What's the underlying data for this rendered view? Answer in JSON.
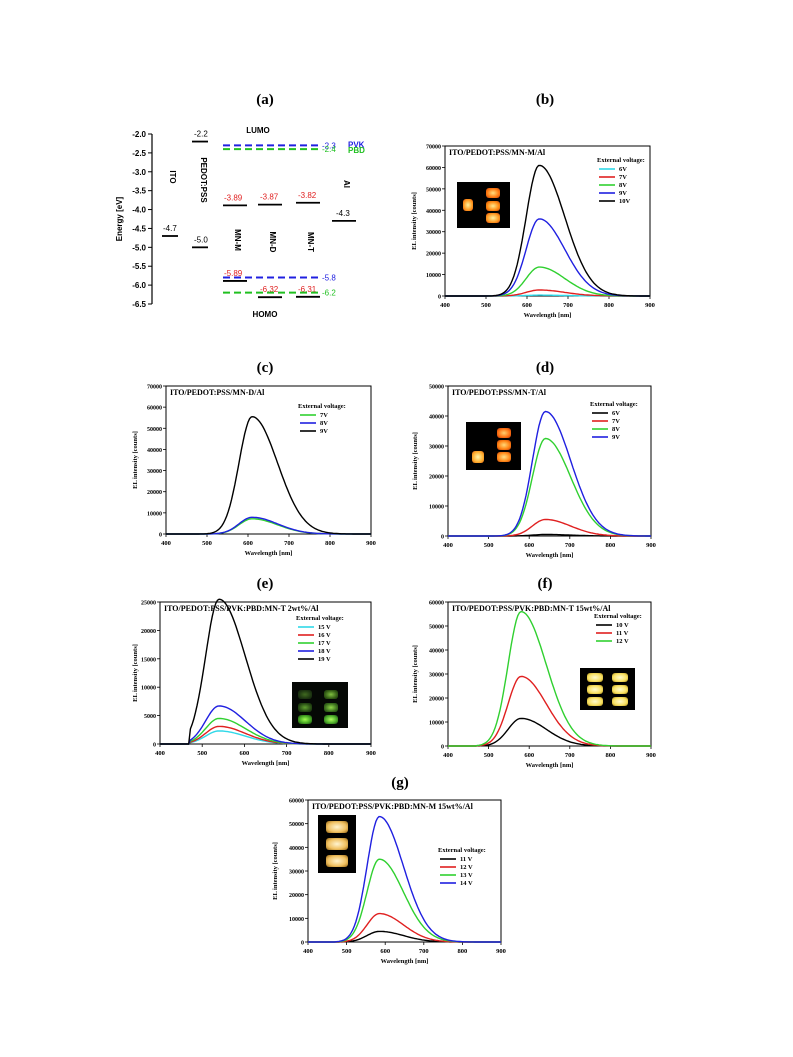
{
  "panels": {
    "a": {
      "label": "(a)"
    },
    "b": {
      "label": "(b)"
    },
    "c": {
      "label": "(c)"
    },
    "d": {
      "label": "(d)"
    },
    "e": {
      "label": "(e)"
    },
    "f": {
      "label": "(f)"
    },
    "g": {
      "label": "(g)"
    }
  },
  "chart_data": [
    {
      "id": "a",
      "type": "diagram",
      "ylabel": "Energy [eV]",
      "ylim": [
        -6.5,
        -2.0
      ],
      "yticks": [
        "-2.0",
        "-2.5",
        "-3.0",
        "-3.5",
        "-4.0",
        "-4.5",
        "-5.0",
        "-5.5",
        "-6.0",
        "-6.5"
      ],
      "top_label": "LUMO",
      "bottom_label": "HOMO",
      "materials": [
        {
          "name": "ITO",
          "levels": [
            {
              "value": -4.7,
              "label": "-4.7",
              "color": "#000000"
            }
          ]
        },
        {
          "name": "PEDOT:PSS",
          "levels": [
            {
              "value": -2.2,
              "label": "-2.2",
              "color": "#000000"
            },
            {
              "value": -5.0,
              "label": "-5.0",
              "color": "#000000"
            }
          ]
        },
        {
          "name": "MN-M",
          "levels": [
            {
              "value": -3.89,
              "label": "-3.89",
              "color": "#e02020"
            },
            {
              "value": -5.89,
              "label": "-5.89",
              "color": "#e02020"
            }
          ]
        },
        {
          "name": "MN-D",
          "levels": [
            {
              "value": -3.87,
              "label": "-3.87",
              "color": "#e02020"
            },
            {
              "value": -6.32,
              "label": "-6.32",
              "color": "#e02020"
            }
          ]
        },
        {
          "name": "MN-T",
          "levels": [
            {
              "value": -3.82,
              "label": "-3.82",
              "color": "#e02020"
            },
            {
              "value": -6.31,
              "label": "-6.31",
              "color": "#e02020"
            }
          ]
        },
        {
          "name": "Al",
          "levels": [
            {
              "value": -4.3,
              "label": "-4.3",
              "color": "#000000"
            }
          ]
        }
      ],
      "dashed_levels": [
        {
          "name": "PVK",
          "lumo": -2.3,
          "lumo_label": "-2.3",
          "homo": -5.8,
          "homo_label": "-5.8",
          "color": "#2020e0"
        },
        {
          "name": "PBD",
          "lumo": -2.4,
          "lumo_label": "-2.4",
          "homo": -6.2,
          "homo_label": "-6.2",
          "color": "#20c020"
        }
      ]
    },
    {
      "id": "b",
      "type": "line",
      "title": "ITO/PEDOT:PSS/MN-M/Al",
      "xlabel": "Wavelength [nm]",
      "ylabel": "EL intensity [counts]",
      "xlim": [
        400,
        900
      ],
      "ylim": [
        0,
        70000
      ],
      "xticks": [
        400,
        500,
        600,
        700,
        800,
        900
      ],
      "yticks": [
        0,
        10000,
        20000,
        30000,
        40000,
        50000,
        60000,
        70000
      ],
      "legend_title": "External voltage:",
      "legend_position": "top-right",
      "inset_photo": "left",
      "series": [
        {
          "name": "6V",
          "color": "#30d8e8",
          "peak": 400,
          "center": 630
        },
        {
          "name": "7V",
          "color": "#e02020",
          "peak": 2800,
          "center": 630
        },
        {
          "name": "8V",
          "color": "#30d030",
          "peak": 13500,
          "center": 630
        },
        {
          "name": "9V",
          "color": "#2020e0",
          "peak": 36000,
          "center": 630
        },
        {
          "name": "10V",
          "color": "#000000",
          "peak": 61000,
          "center": 630
        }
      ]
    },
    {
      "id": "c",
      "type": "line",
      "title": "ITO/PEDOT:PSS/MN-D/Al",
      "xlabel": "Wavelength [nm]",
      "ylabel": "EL intensity [counts]",
      "xlim": [
        400,
        900
      ],
      "ylim": [
        0,
        70000
      ],
      "xticks": [
        400,
        500,
        600,
        700,
        800,
        900
      ],
      "yticks": [
        0,
        10000,
        20000,
        30000,
        40000,
        50000,
        60000,
        70000
      ],
      "legend_title": "External voltage:",
      "legend_position": "top-right",
      "series": [
        {
          "name": "7V",
          "color": "#30d030",
          "peak": 7200,
          "center": 610
        },
        {
          "name": "8V",
          "color": "#2020e0",
          "peak": 7900,
          "center": 610
        },
        {
          "name": "9V",
          "color": "#000000",
          "peak": 55500,
          "center": 610
        }
      ]
    },
    {
      "id": "d",
      "type": "line",
      "title": "ITO/PEDOT:PSS/MN-T/Al",
      "xlabel": "Wavelength [nm]",
      "ylabel": "EL intensity [counts]",
      "xlim": [
        400,
        900
      ],
      "ylim": [
        0,
        50000
      ],
      "xticks": [
        400,
        500,
        600,
        700,
        800,
        900
      ],
      "yticks": [
        0,
        10000,
        20000,
        30000,
        40000,
        50000
      ],
      "legend_title": "External voltage:",
      "legend_position": "top-right",
      "inset_photo": "left",
      "series": [
        {
          "name": "6V",
          "color": "#000000",
          "peak": 500,
          "center": 640
        },
        {
          "name": "7V",
          "color": "#e02020",
          "peak": 5500,
          "center": 640
        },
        {
          "name": "8V",
          "color": "#30d030",
          "peak": 32500,
          "center": 640
        },
        {
          "name": "9V",
          "color": "#2020e0",
          "peak": 41500,
          "center": 640
        }
      ]
    },
    {
      "id": "e",
      "type": "line",
      "title": "ITO/PEDOT:PSS/PVK:PBD:MN-T 2wt%/Al",
      "xlabel": "Wavelength [nm]",
      "ylabel": "EL intensity [counts]",
      "xlim": [
        400,
        900
      ],
      "ylim": [
        0,
        25000
      ],
      "xticks": [
        400,
        500,
        600,
        700,
        800,
        900
      ],
      "yticks": [
        0,
        5000,
        10000,
        15000,
        20000,
        25000
      ],
      "legend_title": "External voltage:",
      "legend_position": "top-right",
      "inset_photo": "right",
      "series": [
        {
          "name": "15 V",
          "color": "#30d8e8",
          "peak": 2300,
          "center": 540
        },
        {
          "name": "16 V",
          "color": "#e02020",
          "peak": 3100,
          "center": 540
        },
        {
          "name": "17 V",
          "color": "#30d030",
          "peak": 4500,
          "center": 540
        },
        {
          "name": "18 V",
          "color": "#2020e0",
          "peak": 6700,
          "center": 540
        },
        {
          "name": "19 V",
          "color": "#000000",
          "peak": 25500,
          "center": 540
        }
      ]
    },
    {
      "id": "f",
      "type": "line",
      "title": "ITO/PEDOT:PSS/PVK:PBD:MN-T 15wt%/Al",
      "xlabel": "Wavelength [nm]",
      "ylabel": "EL intensity [counts]",
      "xlim": [
        400,
        900
      ],
      "ylim": [
        0,
        60000
      ],
      "xticks": [
        400,
        500,
        600,
        700,
        800,
        900
      ],
      "yticks": [
        0,
        10000,
        20000,
        30000,
        40000,
        50000,
        60000
      ],
      "legend_title": "External voltage:",
      "legend_position": "top-right",
      "inset_photo": "right",
      "series": [
        {
          "name": "10 V",
          "color": "#000000",
          "peak": 11500,
          "center": 580
        },
        {
          "name": "11 V",
          "color": "#e02020",
          "peak": 29000,
          "center": 580
        },
        {
          "name": "12 V",
          "color": "#30d030",
          "peak": 56000,
          "center": 580
        }
      ]
    },
    {
      "id": "g",
      "type": "line",
      "title": "ITO/PEDOT:PSS/PVK:PBD:MN-M 15wt%/Al",
      "xlabel": "Wavelength [nm]",
      "ylabel": "EL intensity [counts]",
      "xlim": [
        400,
        900
      ],
      "ylim": [
        0,
        60000
      ],
      "xticks": [
        400,
        500,
        600,
        700,
        800,
        900
      ],
      "yticks": [
        0,
        10000,
        20000,
        30000,
        40000,
        50000,
        60000
      ],
      "legend_title": "External voltage:",
      "legend_position": "right",
      "inset_photo": "left",
      "series": [
        {
          "name": "11 V",
          "color": "#000000",
          "peak": 4500,
          "center": 585
        },
        {
          "name": "12 V",
          "color": "#e02020",
          "peak": 12000,
          "center": 585
        },
        {
          "name": "13 V",
          "color": "#30d030",
          "peak": 35000,
          "center": 585
        },
        {
          "name": "14 V",
          "color": "#2020e0",
          "peak": 53000,
          "center": 585
        }
      ]
    }
  ]
}
